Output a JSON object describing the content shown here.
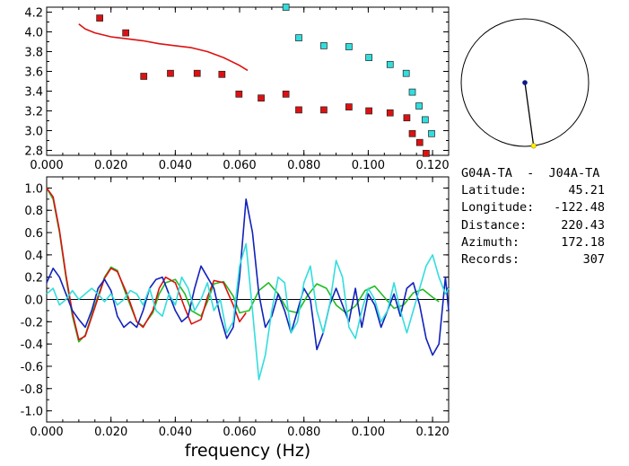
{
  "station_pair": "G04A-TA  -  J04A-TA",
  "info": [
    {
      "label": "Latitude:",
      "value": "45.21"
    },
    {
      "label": "Longitude:",
      "value": "-122.48"
    },
    {
      "label": "Distance:",
      "value": "220.43"
    },
    {
      "label": "Azimuth:",
      "value": "172.18"
    },
    {
      "label": "Records:",
      "value": "307"
    }
  ],
  "colors": {
    "red": "#dd1111",
    "green": "#22bb22",
    "blue": "#1122bb",
    "cyan": "#33dddd",
    "dot_blue": "#0a1a88",
    "dot_yellow": "#ffee00"
  },
  "chart_data": [
    {
      "type": "scatter",
      "title": "",
      "xlabel": "",
      "ylabel": "",
      "xlim": [
        0,
        0.125
      ],
      "ylim": [
        2.75,
        4.25
      ],
      "xticks": [
        "0.000",
        "0.020",
        "0.040",
        "0.060",
        "0.080",
        "0.100",
        "0.120"
      ],
      "yticks": [
        "2.8",
        "3.0",
        "3.2",
        "3.4",
        "3.6",
        "3.8",
        "4.0",
        "4.2"
      ],
      "series": [
        {
          "color": "red",
          "marker": "square",
          "x": [
            0.0165,
            0.0246,
            0.0302,
            0.0385,
            0.0468,
            0.0545,
            0.0598,
            0.0667,
            0.0744,
            0.0784,
            0.0862,
            0.094,
            0.1002,
            0.1068,
            0.112,
            0.1137,
            0.116,
            0.118
          ],
          "y": [
            4.14,
            3.99,
            3.55,
            3.58,
            3.58,
            3.57,
            3.37,
            3.33,
            3.37,
            3.21,
            3.21,
            3.24,
            3.2,
            3.18,
            3.13,
            2.97,
            2.88,
            2.77
          ]
        },
        {
          "color": "cyan",
          "marker": "square",
          "x": [
            0.0744,
            0.0784,
            0.0862,
            0.094,
            0.1002,
            0.1068,
            0.1118,
            0.1137,
            0.1158,
            0.1177,
            0.1197
          ],
          "y": [
            4.25,
            3.94,
            3.86,
            3.85,
            3.74,
            3.67,
            3.58,
            3.39,
            3.25,
            3.11,
            2.97
          ]
        },
        {
          "color": "red",
          "type": "line",
          "x": [
            0.01,
            0.012,
            0.015,
            0.02,
            0.025,
            0.03,
            0.035,
            0.04,
            0.045,
            0.05,
            0.055,
            0.06,
            0.0625
          ],
          "y": [
            4.08,
            4.03,
            3.99,
            3.95,
            3.93,
            3.91,
            3.88,
            3.86,
            3.84,
            3.8,
            3.74,
            3.66,
            3.61
          ]
        }
      ]
    },
    {
      "type": "line",
      "title": "",
      "xlabel": "frequency (Hz)",
      "ylabel": "",
      "xlim": [
        0,
        0.125
      ],
      "ylim": [
        -1.1,
        1.1
      ],
      "xticks": [
        "0.000",
        "0.020",
        "0.040",
        "0.060",
        "0.080",
        "0.100",
        "0.120"
      ],
      "yticks": [
        "1.0",
        "0.8",
        "0.6",
        "0.4",
        "0.2",
        "0.0",
        "-0.2",
        "-0.4",
        "-0.6",
        "-0.8",
        "-1.0"
      ],
      "series": [
        {
          "color": "green",
          "x": [
            0,
            0.002,
            0.004,
            0.006,
            0.008,
            0.01,
            0.012,
            0.015,
            0.018,
            0.02,
            0.022,
            0.025,
            0.028,
            0.03,
            0.033,
            0.035,
            0.037,
            0.04,
            0.043,
            0.045,
            0.048,
            0.05,
            0.052,
            0.055,
            0.058,
            0.06,
            0.063,
            0.066,
            0.069,
            0.072,
            0.075,
            0.078,
            0.081,
            0.084,
            0.087,
            0.09,
            0.093,
            0.096,
            0.099,
            0.102,
            0.105,
            0.108,
            0.111,
            0.114,
            0.117,
            0.12,
            0.122
          ],
          "y": [
            1.0,
            0.9,
            0.6,
            0.2,
            -0.15,
            -0.38,
            -0.32,
            -0.05,
            0.2,
            0.29,
            0.26,
            0.02,
            -0.2,
            -0.24,
            -0.12,
            0.05,
            0.15,
            0.18,
            0.05,
            -0.1,
            -0.15,
            -0.02,
            0.14,
            0.16,
            0.03,
            -0.12,
            -0.1,
            0.08,
            0.15,
            0.05,
            -0.1,
            -0.12,
            0.03,
            0.14,
            0.1,
            -0.05,
            -0.12,
            -0.06,
            0.08,
            0.12,
            0.02,
            -0.08,
            -0.05,
            0.06,
            0.09,
            0.02,
            -0.02
          ]
        },
        {
          "color": "red",
          "x": [
            0,
            0.002,
            0.004,
            0.006,
            0.008,
            0.01,
            0.012,
            0.015,
            0.018,
            0.02,
            0.022,
            0.025,
            0.028,
            0.03,
            0.033,
            0.035,
            0.037,
            0.04,
            0.043,
            0.045,
            0.048,
            0.05,
            0.052,
            0.055,
            0.058,
            0.06,
            0.062
          ],
          "y": [
            1.0,
            0.92,
            0.62,
            0.22,
            -0.12,
            -0.36,
            -0.33,
            -0.07,
            0.19,
            0.28,
            0.25,
            0.05,
            -0.2,
            -0.25,
            -0.1,
            0.1,
            0.2,
            0.15,
            -0.08,
            -0.22,
            -0.18,
            0.02,
            0.17,
            0.15,
            -0.05,
            -0.2,
            -0.12
          ]
        },
        {
          "color": "blue",
          "x": [
            0,
            0.002,
            0.004,
            0.006,
            0.008,
            0.01,
            0.012,
            0.014,
            0.016,
            0.018,
            0.02,
            0.022,
            0.024,
            0.026,
            0.028,
            0.03,
            0.032,
            0.034,
            0.036,
            0.038,
            0.04,
            0.042,
            0.044,
            0.046,
            0.048,
            0.05,
            0.052,
            0.054,
            0.056,
            0.058,
            0.06,
            0.062,
            0.064,
            0.066,
            0.068,
            0.07,
            0.072,
            0.074,
            0.076,
            0.078,
            0.08,
            0.082,
            0.084,
            0.086,
            0.088,
            0.09,
            0.092,
            0.094,
            0.096,
            0.098,
            0.1,
            0.102,
            0.104,
            0.106,
            0.108,
            0.11,
            0.112,
            0.114,
            0.116,
            0.118,
            0.12,
            0.122,
            0.124,
            0.125
          ],
          "y": [
            0.15,
            0.28,
            0.2,
            0.05,
            -0.1,
            -0.18,
            -0.25,
            -0.1,
            0.1,
            0.18,
            0.08,
            -0.15,
            -0.25,
            -0.2,
            -0.25,
            -0.1,
            0.1,
            0.18,
            0.2,
            0.05,
            -0.1,
            -0.2,
            -0.15,
            0.1,
            0.3,
            0.2,
            0.1,
            -0.15,
            -0.35,
            -0.25,
            0.2,
            0.9,
            0.6,
            0.05,
            -0.25,
            -0.15,
            0.05,
            -0.1,
            -0.3,
            -0.1,
            0.1,
            0.0,
            -0.45,
            -0.3,
            -0.05,
            0.1,
            -0.05,
            -0.2,
            0.1,
            -0.25,
            0.05,
            -0.05,
            -0.25,
            -0.1,
            0.05,
            -0.15,
            0.1,
            0.15,
            -0.05,
            -0.35,
            -0.5,
            -0.4,
            0.2,
            -0.1
          ]
        },
        {
          "color": "cyan",
          "x": [
            0,
            0.002,
            0.004,
            0.006,
            0.008,
            0.01,
            0.012,
            0.014,
            0.016,
            0.018,
            0.02,
            0.022,
            0.024,
            0.026,
            0.028,
            0.03,
            0.032,
            0.034,
            0.036,
            0.038,
            0.04,
            0.042,
            0.044,
            0.046,
            0.048,
            0.05,
            0.052,
            0.054,
            0.056,
            0.058,
            0.06,
            0.062,
            0.064,
            0.066,
            0.068,
            0.07,
            0.072,
            0.074,
            0.076,
            0.078,
            0.08,
            0.082,
            0.084,
            0.086,
            0.088,
            0.09,
            0.092,
            0.094,
            0.096,
            0.098,
            0.1,
            0.102,
            0.104,
            0.106,
            0.108,
            0.11,
            0.112,
            0.114,
            0.116,
            0.118,
            0.12,
            0.122,
            0.124,
            0.125
          ],
          "y": [
            0.05,
            0.1,
            -0.05,
            0.0,
            0.08,
            0.0,
            0.05,
            0.1,
            0.05,
            -0.02,
            0.05,
            -0.05,
            0.0,
            0.08,
            0.05,
            -0.05,
            0.1,
            -0.1,
            -0.15,
            0.05,
            -0.05,
            0.2,
            0.1,
            -0.1,
            0.0,
            0.15,
            -0.1,
            0.0,
            -0.3,
            -0.2,
            0.3,
            0.5,
            -0.1,
            -0.72,
            -0.5,
            -0.1,
            0.2,
            0.15,
            -0.3,
            -0.2,
            0.15,
            0.3,
            -0.1,
            -0.3,
            -0.05,
            0.35,
            0.2,
            -0.25,
            -0.35,
            -0.1,
            0.1,
            0.0,
            -0.2,
            -0.1,
            0.15,
            -0.1,
            -0.3,
            -0.1,
            0.1,
            0.3,
            0.4,
            0.2,
            0.05,
            0.1
          ]
        }
      ]
    }
  ],
  "azimuth_dial": {
    "azimuth_deg": 172.18
  }
}
